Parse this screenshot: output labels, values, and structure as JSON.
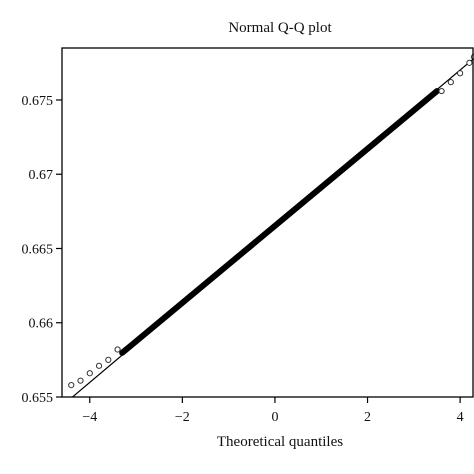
{
  "chart_data": {
    "type": "scatter",
    "title": "Normal Q-Q plot",
    "xlabel": "Theoretical quantiles",
    "ylabel": "",
    "xlim": [
      -4.6,
      4.3
    ],
    "ylim": [
      0.655,
      0.6785
    ],
    "x_ticks": [
      -4,
      -2,
      0,
      2,
      4
    ],
    "x_tick_labels": [
      "−4",
      "−2",
      "0",
      "2",
      "4"
    ],
    "y_ticks": [
      0.655,
      0.66,
      0.665,
      0.67,
      0.675
    ],
    "y_tick_labels": [
      "0.655",
      "0.66",
      "0.665",
      "0.67",
      "0.675"
    ],
    "reference_line": {
      "x": [
        -4.45,
        4.3
      ],
      "y": [
        0.6548,
        0.6778
      ]
    },
    "points_summary": {
      "x_range": [
        -4.4,
        4.3
      ],
      "y_range": [
        0.6558,
        0.6779
      ],
      "center": [
        0.0,
        0.6665
      ],
      "tails": [
        {
          "x": -4.4,
          "y": 0.6558
        },
        {
          "x": -4.2,
          "y": 0.6561
        },
        {
          "x": -4.0,
          "y": 0.6566
        },
        {
          "x": -3.8,
          "y": 0.6571
        },
        {
          "x": -3.6,
          "y": 0.6575
        },
        {
          "x": -3.4,
          "y": 0.6582
        },
        {
          "x": 3.6,
          "y": 0.6756
        },
        {
          "x": 3.8,
          "y": 0.6762
        },
        {
          "x": 4.0,
          "y": 0.6768
        },
        {
          "x": 4.2,
          "y": 0.6775
        },
        {
          "x": 4.3,
          "y": 0.6779
        }
      ]
    },
    "grid": false,
    "legend": "none"
  }
}
